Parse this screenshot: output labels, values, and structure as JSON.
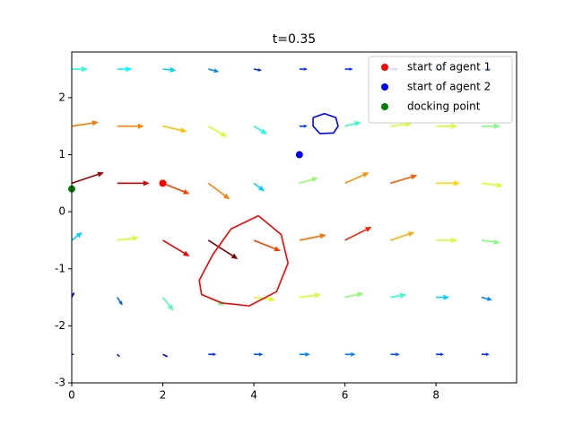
{
  "chart_data": {
    "type": "quiver",
    "title": "t=0.35",
    "xlim": [
      0,
      9.77
    ],
    "ylim": [
      -3,
      2.8
    ],
    "xticks": [
      0,
      2,
      4,
      6,
      8
    ],
    "yticks": [
      -3,
      -2,
      -1,
      0,
      1,
      2
    ],
    "colormap": "jet",
    "legend": "upper right",
    "field": {
      "x": [
        0,
        1,
        2,
        3,
        4,
        5,
        6,
        7,
        8,
        9,
        0,
        1,
        2,
        3,
        4,
        5,
        6,
        7,
        8,
        9,
        0,
        1,
        2,
        3,
        4,
        5,
        6,
        7,
        8,
        9,
        0,
        1,
        2,
        3,
        4,
        5,
        6,
        7,
        8,
        9,
        0,
        1,
        2,
        3,
        4,
        5,
        6,
        7,
        8,
        9,
        0,
        1,
        2,
        3,
        4,
        5,
        6,
        7,
        8,
        9
      ],
      "y": [
        2.5,
        2.5,
        2.5,
        2.5,
        2.5,
        2.5,
        2.5,
        2.5,
        2.5,
        2.5,
        1.5,
        1.5,
        1.5,
        1.5,
        1.5,
        1.5,
        1.5,
        1.5,
        1.5,
        1.5,
        0.5,
        0.5,
        0.5,
        0.5,
        0.5,
        0.5,
        0.5,
        0.5,
        0.5,
        0.5,
        -0.5,
        -0.5,
        -0.5,
        -0.5,
        -0.5,
        -0.5,
        -0.5,
        -0.5,
        -0.5,
        -0.5,
        -1.5,
        -1.5,
        -1.5,
        -1.5,
        -1.5,
        -1.5,
        -1.5,
        -1.5,
        -1.5,
        -1.5,
        -2.5,
        -2.5,
        -2.5,
        -2.5,
        -2.5,
        -2.5,
        -2.5,
        -2.5,
        -2.5,
        -2.5
      ],
      "u": [
        0.6,
        0.55,
        0.5,
        0.4,
        0.3,
        0.3,
        0.3,
        0.3,
        0.35,
        0.4,
        1.0,
        1.0,
        0.9,
        0.7,
        0.5,
        0.3,
        0.6,
        0.8,
        0.8,
        0.7,
        1.2,
        1.2,
        1.0,
        0.8,
        0.4,
        0.7,
        0.9,
        1.0,
        0.9,
        0.8,
        0.4,
        0.8,
        1.0,
        1.1,
        1.0,
        1.0,
        1.0,
        0.9,
        0.8,
        0.7,
        0.1,
        0.2,
        0.4,
        0.6,
        0.8,
        0.8,
        0.7,
        0.6,
        0.5,
        0.4,
        0.1,
        0.1,
        0.2,
        0.3,
        0.35,
        0.4,
        0.4,
        0.35,
        0.3,
        0.3
      ],
      "v": [
        0,
        0,
        -0.05,
        -0.1,
        -0.05,
        0,
        0,
        0,
        0,
        0,
        0.15,
        0,
        -0.2,
        -0.4,
        -0.3,
        0,
        0.15,
        0.1,
        0,
        0,
        0.4,
        0,
        -0.4,
        -0.6,
        -0.3,
        0.2,
        0.4,
        0.3,
        0,
        -0.1,
        0.3,
        0.1,
        -0.6,
        -0.7,
        -0.4,
        0.2,
        0.5,
        0.3,
        0,
        -0.1,
        0.2,
        -0.3,
        -0.5,
        -0.3,
        -0.1,
        0.1,
        0.15,
        0.1,
        0,
        -0.1,
        0,
        -0.1,
        -0.1,
        0,
        0,
        0,
        0,
        0,
        0,
        0
      ]
    },
    "curves": [
      {
        "color": "#ff0000",
        "x": [
          4.1,
          4.6,
          4.75,
          4.5,
          3.9,
          3.3,
          2.85,
          2.8,
          3.1,
          3.5,
          4.1
        ],
        "y": [
          -0.07,
          -0.4,
          -0.9,
          -1.4,
          -1.65,
          -1.6,
          -1.45,
          -1.2,
          -0.75,
          -0.3,
          -0.07
        ]
      },
      {
        "color": "#0000ff",
        "x": [
          5.3,
          5.55,
          5.8,
          5.85,
          5.75,
          5.45,
          5.3,
          5.3
        ],
        "y": [
          1.65,
          1.72,
          1.65,
          1.5,
          1.38,
          1.37,
          1.5,
          1.65
        ]
      }
    ],
    "series": [
      {
        "name": "start of agent 1",
        "color": "#ff0000",
        "x": [
          2
        ],
        "values": [
          0.5
        ]
      },
      {
        "name": "start of agent 2",
        "color": "#0000ff",
        "x": [
          5
        ],
        "values": [
          1
        ]
      },
      {
        "name": "docking point",
        "color": "#008000",
        "x": [
          0
        ],
        "values": [
          0.4
        ]
      }
    ]
  }
}
